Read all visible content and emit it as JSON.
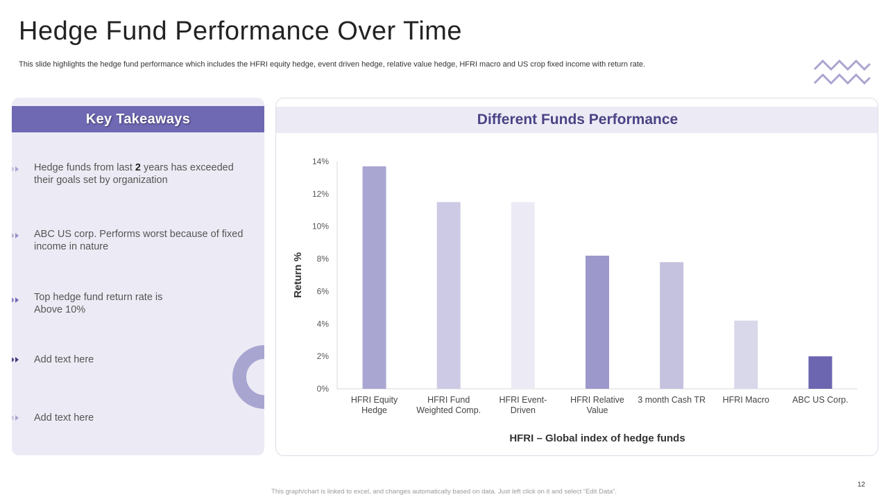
{
  "page": {
    "title": "Hedge Fund Performance Over Time",
    "subtitle": "This slide highlights the hedge fund performance which includes the HFRI equity hedge, event driven hedge, relative value hedge, HFRI macro and US crop fixed income with return rate.",
    "footer": "This graph/chart is linked to excel, and changes automatically based on data. Just left click on it and select “Edit Data”.",
    "page_number": "12"
  },
  "takeaways": {
    "title": "Key Takeaways",
    "items": [
      {
        "pre": "Hedge funds from last ",
        "bold": "2",
        "post": " years has exceeded their goals set by organization"
      },
      {
        "text": "ABC US corp. Performs worst because of fixed income in nature"
      },
      {
        "text": "Top hedge fund return rate is Above 10%"
      },
      {
        "text": "Add text here"
      },
      {
        "text": "Add text here"
      }
    ]
  },
  "chart_panel": {
    "title": "Different Funds Performance"
  },
  "colors": {
    "accent": "#6f68b3",
    "panel_bg": "#ecebf5",
    "bars": [
      "#a9a6d2",
      "#cccae4",
      "#ecebf5",
      "#9c98cc",
      "#c5c2e0",
      "#d9d8ea",
      "#6c65b0"
    ]
  },
  "chart_data": {
    "type": "bar",
    "title": "Different Funds Performance",
    "categories": [
      [
        "HFRI Equity",
        "Hedge"
      ],
      [
        "HFRI Fund",
        "Weighted Comp."
      ],
      [
        "HFRI Event-",
        "Driven"
      ],
      [
        "HFRI Relative",
        "Value"
      ],
      [
        "3 month Cash TR"
      ],
      [
        "HFRI Macro"
      ],
      [
        "ABC US Corp."
      ]
    ],
    "values": [
      13.7,
      11.5,
      11.5,
      8.2,
      7.8,
      4.2,
      2.0
    ],
    "ylim": [
      0,
      14
    ],
    "yticks": [
      0,
      2,
      4,
      6,
      8,
      10,
      12,
      14
    ],
    "ytick_suffix": "%",
    "xlabel": "HFRI – Global index of hedge funds",
    "ylabel": "Return %",
    "grid": false
  }
}
